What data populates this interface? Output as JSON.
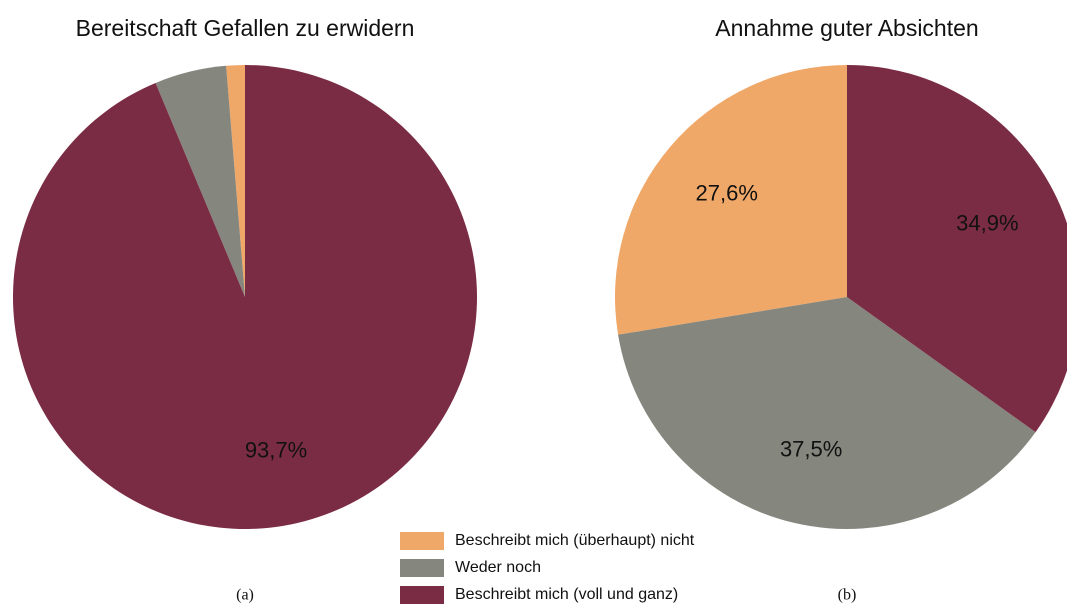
{
  "chart_data": [
    {
      "type": "pie",
      "title": "Bereitschaft Gefallen zu erwidern",
      "caption": "(a)",
      "categories": [
        "Beschreibt mich (überhaupt) nicht",
        "Weder noch",
        "Beschreibt mich (voll und ganz)"
      ],
      "values": [
        1.3,
        5.0,
        93.7
      ],
      "value_labels": [
        null,
        null,
        "93,7%"
      ],
      "colors": [
        "#f0a868",
        "#85867e",
        "#7b2c45"
      ]
    },
    {
      "type": "pie",
      "title": "Annahme guter Absichten",
      "caption": "(b)",
      "categories": [
        "Beschreibt mich (überhaupt) nicht",
        "Weder noch",
        "Beschreibt mich (voll und ganz)"
      ],
      "values": [
        27.6,
        37.5,
        34.9
      ],
      "value_labels": [
        "27,6%",
        "37,5%",
        "34,9%"
      ],
      "colors": [
        "#f0a868",
        "#85867e",
        "#7b2c45"
      ]
    }
  ]
}
